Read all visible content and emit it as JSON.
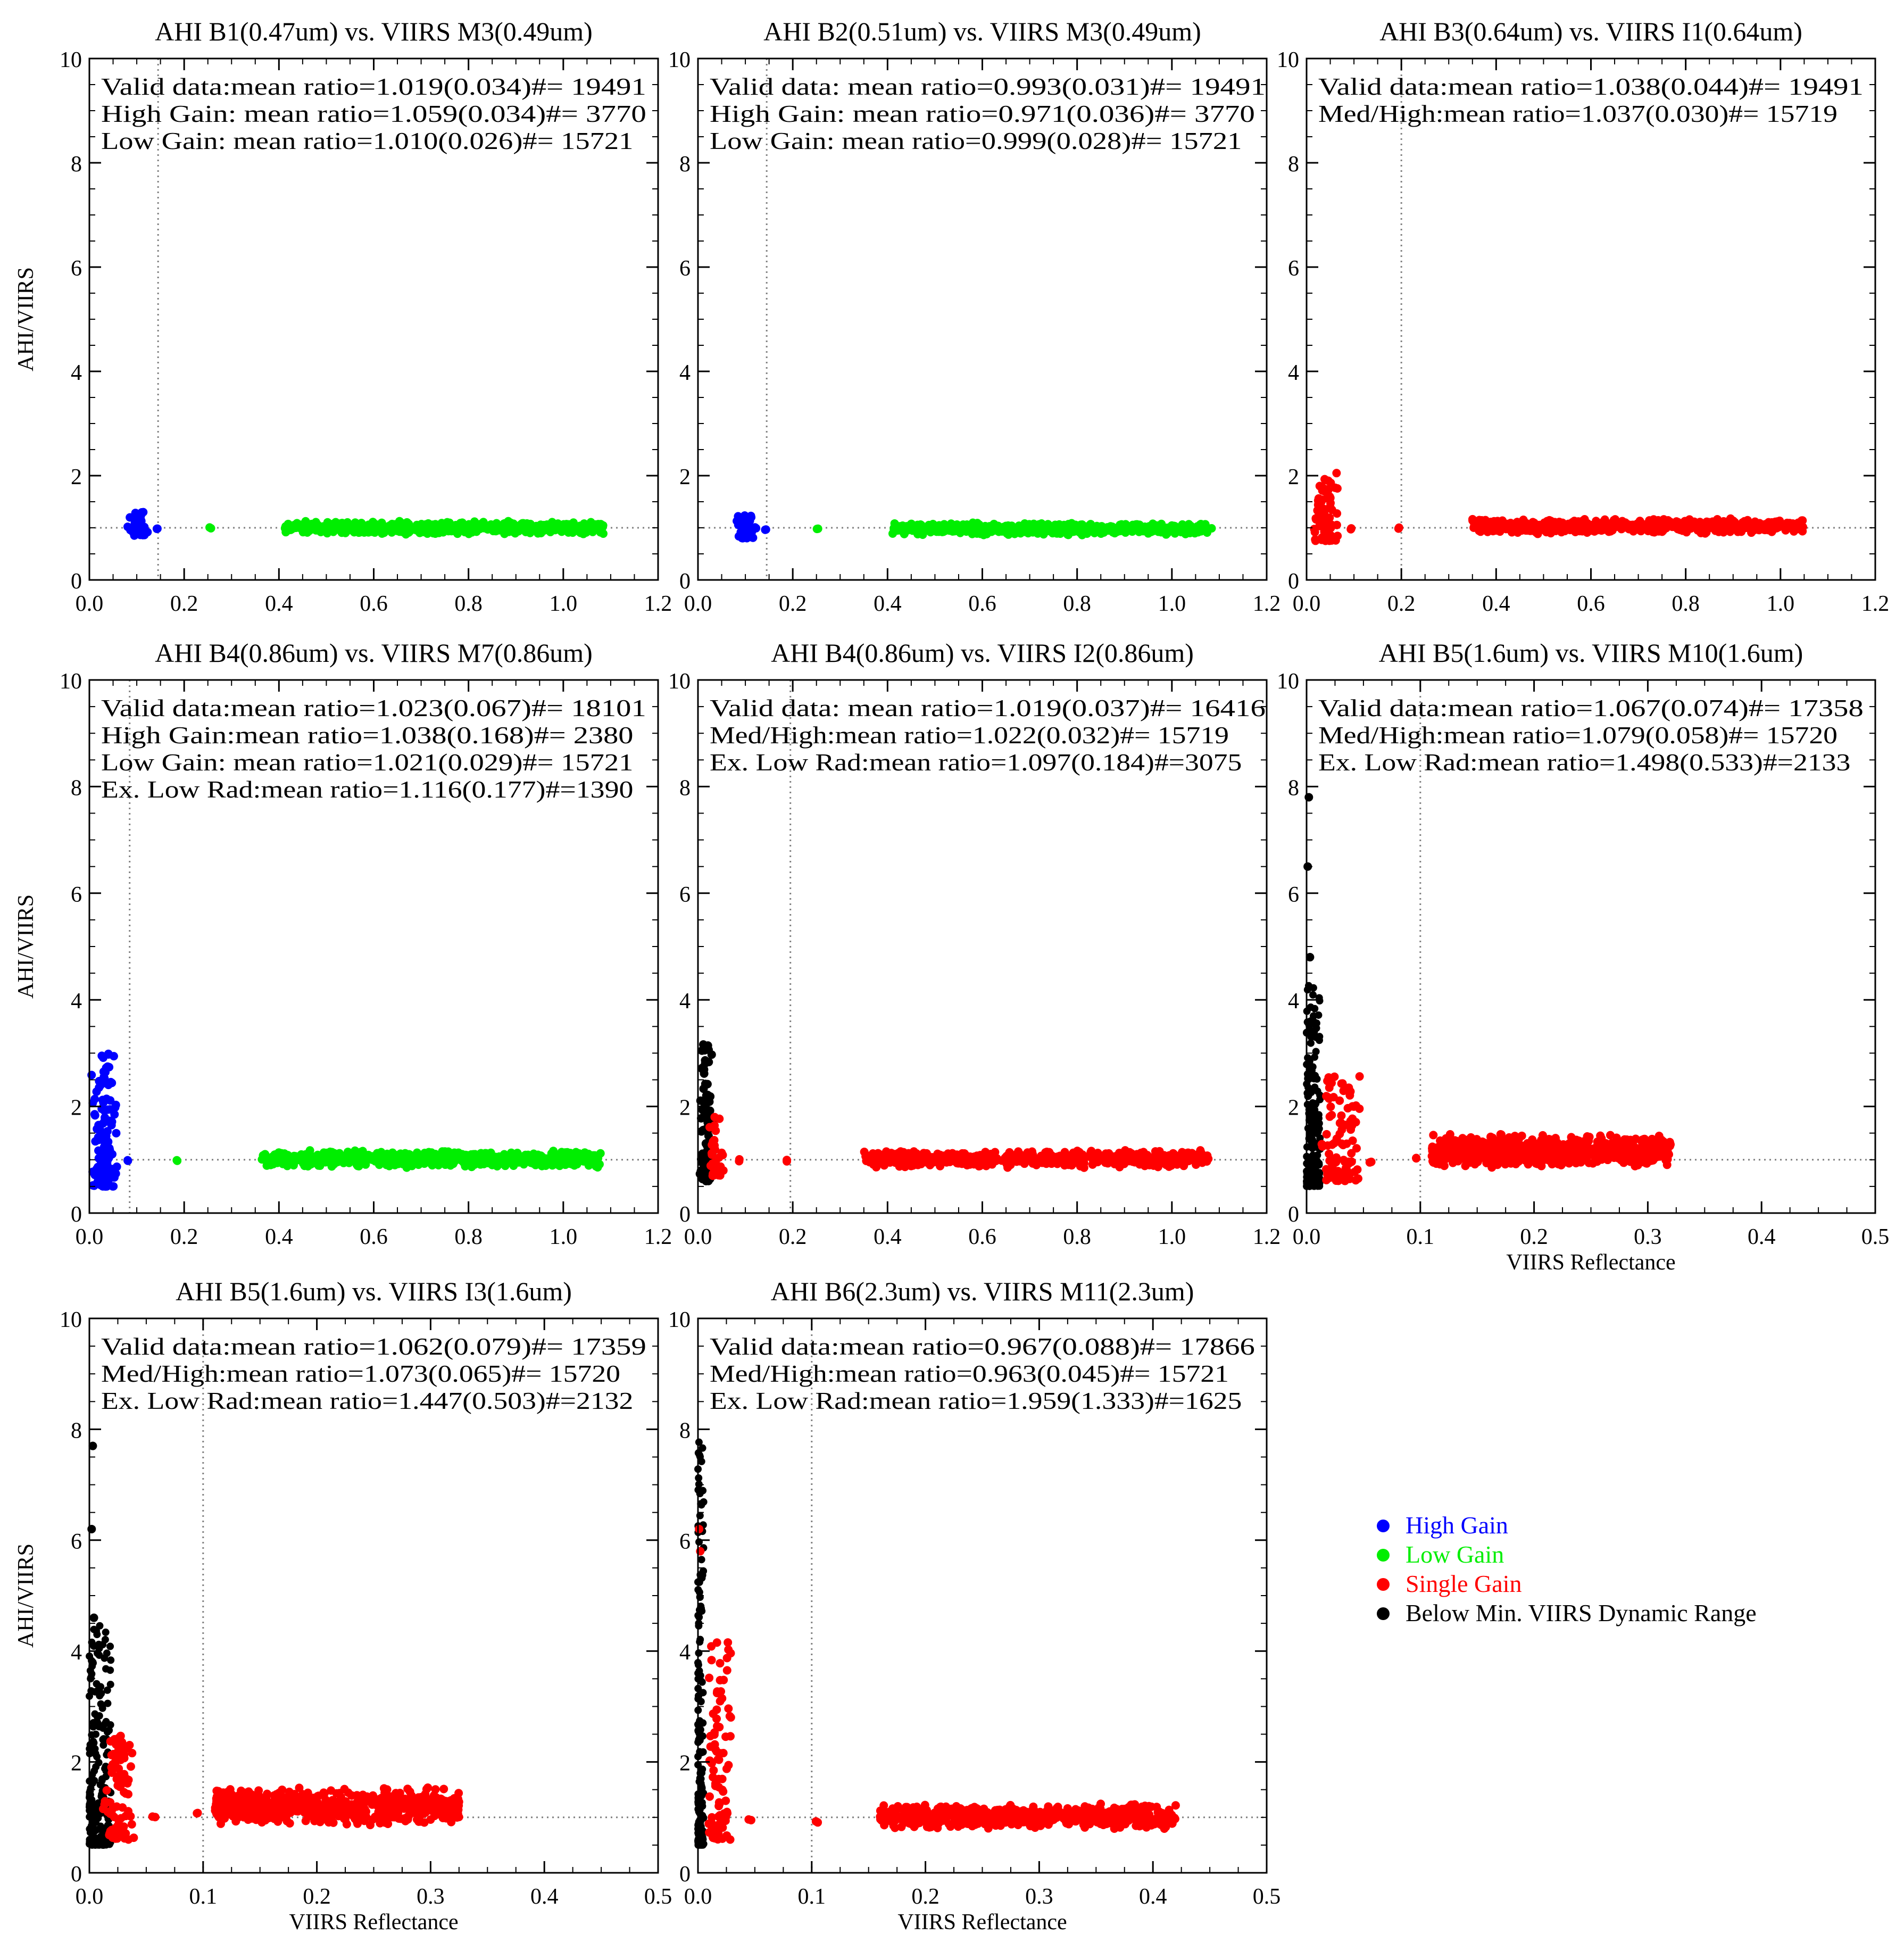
{
  "colors": {
    "high_gain": "#0000ff",
    "low_gain": "#00ee00",
    "single_gain": "#ff0000",
    "below_min": "#000000",
    "reference_line": "#808080"
  },
  "legend": {
    "placement": "right, beside bottom row",
    "items": [
      {
        "key": "high_gain",
        "label": "High Gain"
      },
      {
        "key": "low_gain",
        "label": "Low Gain"
      },
      {
        "key": "single_gain",
        "label": "Single Gain"
      },
      {
        "key": "below_min",
        "label": "Below Min. VIIRS Dynamic Range"
      }
    ]
  },
  "chart_data": [
    {
      "type": "scatter",
      "title": "AHI B1(0.47um) vs. VIIRS M3(0.49um)",
      "xlabel": "",
      "ylabel": "AHI/VIIRS",
      "xlim": [
        0,
        1.2
      ],
      "ylim": [
        0,
        10
      ],
      "xticks": [
        "0.0",
        "0.2",
        "0.4",
        "0.6",
        "0.8",
        "1.0",
        "1.2"
      ],
      "yticks": [
        "0",
        "2",
        "4",
        "6",
        "8",
        "10"
      ],
      "vline_x": 0.145,
      "hline_y": 1.0,
      "stats": [
        "Valid data:mean ratio=1.019(0.034)#= 19491",
        "High Gain: mean ratio=1.059(0.034)#=  3770",
        "Low Gain: mean ratio=1.010(0.026)#= 15721"
      ],
      "clusters": [
        {
          "group": "high_gain",
          "x": [
            0.08,
            0.125
          ],
          "y": [
            0.85,
            1.3
          ],
          "n": 45,
          "shape": "blob"
        },
        {
          "group": "high_gain",
          "x": [
            0.14,
            0.145
          ],
          "y": [
            0.97,
            1.02
          ],
          "n": 2,
          "shape": "blob"
        },
        {
          "group": "low_gain",
          "x": [
            0.25,
            0.26
          ],
          "y": [
            0.98,
            1.03
          ],
          "n": 2,
          "shape": "blob"
        },
        {
          "group": "low_gain",
          "x": [
            0.41,
            1.085
          ],
          "y": [
            0.87,
            1.13
          ],
          "n": 620,
          "shape": "band"
        }
      ]
    },
    {
      "type": "scatter",
      "title": "AHI B2(0.51um) vs. VIIRS M3(0.49um)",
      "xlabel": "",
      "ylabel": "",
      "xlim": [
        0,
        1.2
      ],
      "ylim": [
        0,
        10
      ],
      "xticks": [
        "0.0",
        "0.2",
        "0.4",
        "0.6",
        "0.8",
        "1.0",
        "1.2"
      ],
      "yticks": [
        "0",
        "2",
        "4",
        "6",
        "8",
        "10"
      ],
      "vline_x": 0.145,
      "hline_y": 1.0,
      "stats": [
        "Valid data: mean ratio=0.993(0.031)#= 19491",
        "High Gain: mean ratio=0.971(0.036)#=  3770",
        "Low Gain: mean ratio=0.999(0.028)#= 15721"
      ],
      "clusters": [
        {
          "group": "high_gain",
          "x": [
            0.08,
            0.125
          ],
          "y": [
            0.8,
            1.25
          ],
          "n": 45,
          "shape": "blob"
        },
        {
          "group": "high_gain",
          "x": [
            0.14,
            0.145
          ],
          "y": [
            0.96,
            1.0
          ],
          "n": 2,
          "shape": "blob"
        },
        {
          "group": "low_gain",
          "x": [
            0.25,
            0.26
          ],
          "y": [
            0.96,
            1.01
          ],
          "n": 2,
          "shape": "blob"
        },
        {
          "group": "low_gain",
          "x": [
            0.41,
            1.085
          ],
          "y": [
            0.86,
            1.1
          ],
          "n": 620,
          "shape": "band"
        }
      ]
    },
    {
      "type": "scatter",
      "title": "AHI B3(0.64um) vs. VIIRS I1(0.64um)",
      "xlabel": "",
      "ylabel": "",
      "xlim": [
        0,
        1.2
      ],
      "ylim": [
        0,
        10
      ],
      "xticks": [
        "0.0",
        "0.2",
        "0.4",
        "0.6",
        "0.8",
        "1.0",
        "1.2"
      ],
      "yticks": [
        "0",
        "2",
        "4",
        "6",
        "8",
        "10"
      ],
      "vline_x": 0.2,
      "hline_y": 1.0,
      "stats": [
        "Valid data:mean ratio=1.038(0.044)#= 19491",
        "Med/High:mean ratio=1.037(0.030)#= 15719"
      ],
      "clusters": [
        {
          "group": "single_gain",
          "x": [
            0.01,
            0.07
          ],
          "y": [
            0.75,
            2.05
          ],
          "n": 70,
          "shape": "blob"
        },
        {
          "group": "single_gain",
          "x": [
            0.09,
            0.095
          ],
          "y": [
            0.97,
            1.03
          ],
          "n": 2,
          "shape": "blob"
        },
        {
          "group": "single_gain",
          "x": [
            0.19,
            0.2
          ],
          "y": [
            0.98,
            1.03
          ],
          "n": 2,
          "shape": "blob"
        },
        {
          "group": "single_gain",
          "x": [
            0.35,
            1.05
          ],
          "y": [
            0.88,
            1.18
          ],
          "n": 620,
          "shape": "band"
        }
      ]
    },
    {
      "type": "scatter",
      "title": "AHI B4(0.86um) vs. VIIRS M7(0.86um)",
      "xlabel": "",
      "ylabel": "AHI/VIIRS",
      "xlim": [
        0,
        1.2
      ],
      "ylim": [
        0,
        10
      ],
      "xticks": [
        "0.0",
        "0.2",
        "0.4",
        "0.6",
        "0.8",
        "1.0",
        "1.2"
      ],
      "yticks": [
        "0",
        "2",
        "4",
        "6",
        "8",
        "10"
      ],
      "vline_x": 0.085,
      "hline_y": 1.0,
      "stats": [
        "Valid data:mean ratio=1.023(0.067)#= 18101",
        "High Gain:mean ratio=1.038(0.168)#=  2380",
        "Low Gain: mean ratio=1.021(0.029)#= 15721",
        "Ex. Low Rad:mean ratio=1.116(0.177)#=1390"
      ],
      "clusters": [
        {
          "group": "high_gain",
          "x": [
            0.002,
            0.06
          ],
          "y": [
            0.5,
            3.0
          ],
          "n": 130,
          "shape": "blob"
        },
        {
          "group": "high_gain",
          "x": [
            0.08,
            0.085
          ],
          "y": [
            0.97,
            1.03
          ],
          "n": 2,
          "shape": "blob"
        },
        {
          "group": "low_gain",
          "x": [
            0.18,
            0.19
          ],
          "y": [
            0.97,
            1.02
          ],
          "n": 2,
          "shape": "blob"
        },
        {
          "group": "low_gain",
          "x": [
            0.36,
            1.08
          ],
          "y": [
            0.85,
            1.18
          ],
          "n": 620,
          "shape": "band"
        }
      ]
    },
    {
      "type": "scatter",
      "title": "AHI B4(0.86um) vs. VIIRS I2(0.86um)",
      "xlabel": "",
      "ylabel": "",
      "xlim": [
        0,
        1.2
      ],
      "ylim": [
        0,
        10
      ],
      "xticks": [
        "0.0",
        "0.2",
        "0.4",
        "0.6",
        "0.8",
        "1.0",
        "1.2"
      ],
      "yticks": [
        "0",
        "2",
        "4",
        "6",
        "8",
        "10"
      ],
      "vline_x": 0.195,
      "hline_y": 1.0,
      "stats": [
        "Valid data: mean ratio=1.019(0.037)#= 16416",
        "Med/High:mean ratio=1.022(0.032)#= 15719",
        "Ex. Low Rad:mean ratio=1.097(0.184)#=3075"
      ],
      "clusters": [
        {
          "group": "below_min",
          "x": [
            0.0,
            0.035
          ],
          "y": [
            0.6,
            3.2
          ],
          "n": 90,
          "shape": "blob"
        },
        {
          "group": "single_gain",
          "x": [
            0.015,
            0.06
          ],
          "y": [
            0.7,
            1.8
          ],
          "n": 40,
          "shape": "blob"
        },
        {
          "group": "single_gain",
          "x": [
            0.08,
            0.09
          ],
          "y": [
            0.96,
            1.02
          ],
          "n": 2,
          "shape": "blob"
        },
        {
          "group": "single_gain",
          "x": [
            0.18,
            0.19
          ],
          "y": [
            0.97,
            1.03
          ],
          "n": 2,
          "shape": "blob"
        },
        {
          "group": "single_gain",
          "x": [
            0.35,
            1.08
          ],
          "y": [
            0.85,
            1.18
          ],
          "n": 620,
          "shape": "band"
        }
      ]
    },
    {
      "type": "scatter",
      "title": "AHI B5(1.6um) vs. VIIRS M10(1.6um)",
      "xlabel": "VIIRS Reflectance",
      "ylabel": "",
      "xlim": [
        0,
        0.5
      ],
      "ylim": [
        0,
        10
      ],
      "xticks": [
        "0.0",
        "0.1",
        "0.2",
        "0.3",
        "0.4",
        "0.5"
      ],
      "yticks": [
        "0",
        "2",
        "4",
        "6",
        "8",
        "10"
      ],
      "vline_x": 0.1,
      "hline_y": 1.0,
      "stats": [
        "Valid data:mean ratio=1.067(0.074)#= 17358",
        "Med/High:mean ratio=1.079(0.058)#= 15720",
        "Ex. Low Rad:mean ratio=1.498(0.533)#=2133"
      ],
      "clusters": [
        {
          "group": "below_min",
          "x": [
            0.0,
            0.012
          ],
          "y": [
            0.5,
            4.3
          ],
          "n": 200,
          "shape": "spike"
        },
        {
          "group": "single_gain",
          "x": [
            0.01,
            0.05
          ],
          "y": [
            0.6,
            2.6
          ],
          "n": 90,
          "shape": "blob"
        },
        {
          "group": "single_gain",
          "x": [
            0.055,
            0.06
          ],
          "y": [
            0.95,
            1.0
          ],
          "n": 2,
          "shape": "blob"
        },
        {
          "group": "single_gain",
          "x": [
            0.09,
            0.1
          ],
          "y": [
            1.02,
            1.08
          ],
          "n": 2,
          "shape": "blob"
        },
        {
          "group": "single_gain",
          "x": [
            0.11,
            0.32
          ],
          "y": [
            0.85,
            1.5
          ],
          "n": 650,
          "shape": "band"
        }
      ],
      "points": [
        {
          "group": "below_min",
          "x": 0.002,
          "y": 7.8
        },
        {
          "group": "below_min",
          "x": 0.001,
          "y": 6.5
        },
        {
          "group": "below_min",
          "x": 0.003,
          "y": 4.8
        }
      ]
    },
    {
      "type": "scatter",
      "title": "AHI B5(1.6um) vs. VIIRS I3(1.6um)",
      "xlabel": "VIIRS Reflectance",
      "ylabel": "AHI/VIIRS",
      "xlim": [
        0,
        0.5
      ],
      "ylim": [
        0,
        10
      ],
      "xticks": [
        "0.0",
        "0.1",
        "0.2",
        "0.3",
        "0.4",
        "0.5"
      ],
      "yticks": [
        "0",
        "2",
        "4",
        "6",
        "8",
        "10"
      ],
      "vline_x": 0.1,
      "hline_y": 1.0,
      "stats": [
        "Valid data:mean ratio=1.062(0.079)#= 17359",
        "Med/High:mean ratio=1.073(0.065)#= 15720",
        "Ex. Low Rad:mean ratio=1.447(0.503)#=2132"
      ],
      "clusters": [
        {
          "group": "below_min",
          "x": [
            0.0,
            0.02
          ],
          "y": [
            0.5,
            4.5
          ],
          "n": 200,
          "shape": "spike"
        },
        {
          "group": "single_gain",
          "x": [
            0.01,
            0.04
          ],
          "y": [
            0.6,
            2.5
          ],
          "n": 80,
          "shape": "blob"
        },
        {
          "group": "single_gain",
          "x": [
            0.055,
            0.06
          ],
          "y": [
            0.97,
            1.02
          ],
          "n": 2,
          "shape": "blob"
        },
        {
          "group": "single_gain",
          "x": [
            0.09,
            0.1
          ],
          "y": [
            1.05,
            1.1
          ],
          "n": 2,
          "shape": "blob"
        },
        {
          "group": "single_gain",
          "x": [
            0.11,
            0.325
          ],
          "y": [
            0.85,
            1.55
          ],
          "n": 650,
          "shape": "band"
        }
      ],
      "points": [
        {
          "group": "below_min",
          "x": 0.003,
          "y": 7.7
        },
        {
          "group": "below_min",
          "x": 0.002,
          "y": 6.2
        },
        {
          "group": "below_min",
          "x": 0.004,
          "y": 4.6
        }
      ]
    },
    {
      "type": "scatter",
      "title": "AHI B6(2.3um) vs. VIIRS M11(2.3um)",
      "xlabel": "VIIRS Reflectance",
      "ylabel": "",
      "xlim": [
        0,
        0.5
      ],
      "ylim": [
        0,
        10
      ],
      "xticks": [
        "0.0",
        "0.1",
        "0.2",
        "0.3",
        "0.4",
        "0.5"
      ],
      "yticks": [
        "0",
        "2",
        "4",
        "6",
        "8",
        "10"
      ],
      "vline_x": 0.1,
      "hline_y": 1.0,
      "stats": [
        "Valid data:mean ratio=0.967(0.088)#= 17866",
        "Med/High:mean ratio=0.963(0.045)#= 15721",
        "Ex. Low Rad:mean ratio=1.959(1.333)#=1625"
      ],
      "clusters": [
        {
          "group": "below_min",
          "x": [
            0.0,
            0.005
          ],
          "y": [
            0.5,
            8.0
          ],
          "n": 160,
          "shape": "spike"
        },
        {
          "group": "single_gain",
          "x": [
            0.005,
            0.03
          ],
          "y": [
            0.6,
            4.2
          ],
          "n": 90,
          "shape": "blob"
        },
        {
          "group": "single_gain",
          "x": [
            0.04,
            0.05
          ],
          "y": [
            0.9,
            1.0
          ],
          "n": 2,
          "shape": "blob"
        },
        {
          "group": "single_gain",
          "x": [
            0.1,
            0.11
          ],
          "y": [
            0.88,
            0.95
          ],
          "n": 2,
          "shape": "blob"
        },
        {
          "group": "single_gain",
          "x": [
            0.16,
            0.42
          ],
          "y": [
            0.78,
            1.25
          ],
          "n": 650,
          "shape": "band"
        }
      ],
      "points": [
        {
          "group": "single_gain",
          "x": 0.001,
          "y": 6.2
        },
        {
          "group": "single_gain",
          "x": 0.002,
          "y": 5.8
        }
      ]
    }
  ]
}
